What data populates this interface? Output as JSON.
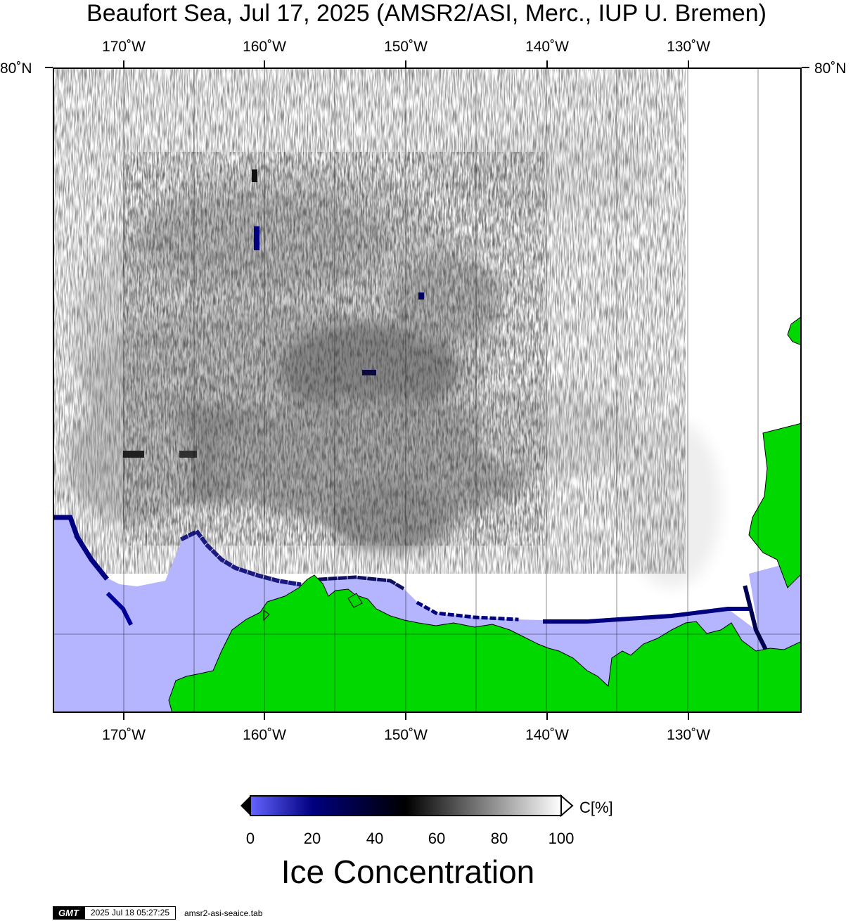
{
  "title": "Beaufort Sea, Jul 17, 2025 (AMSR2/ASI, Merc., IUP U. Bremen)",
  "map": {
    "longitude_ticks": [
      "170˚W",
      "160˚W",
      "150˚W",
      "140˚W",
      "130˚W"
    ],
    "latitude_ticks": [
      "80˚N"
    ],
    "colors": {
      "land": "#00d800",
      "open_water": "#b4b4ff",
      "full_ice": "#ffffff",
      "frame": "#000000"
    }
  },
  "colorbar": {
    "unit": "C[%]",
    "title": "Ice Concentration",
    "ticks": [
      "0",
      "20",
      "40",
      "60",
      "80",
      "100"
    ],
    "stops": [
      {
        "value": 0,
        "color": "#6464ff"
      },
      {
        "value": 20,
        "color": "#000080"
      },
      {
        "value": 50,
        "color": "#000000"
      },
      {
        "value": 100,
        "color": "#ffffff"
      }
    ]
  },
  "footer": {
    "logo": "GMT",
    "timestamp": "2025 Jul 18 05:27:25",
    "source": "amsr2-asi-seaice.tab"
  }
}
